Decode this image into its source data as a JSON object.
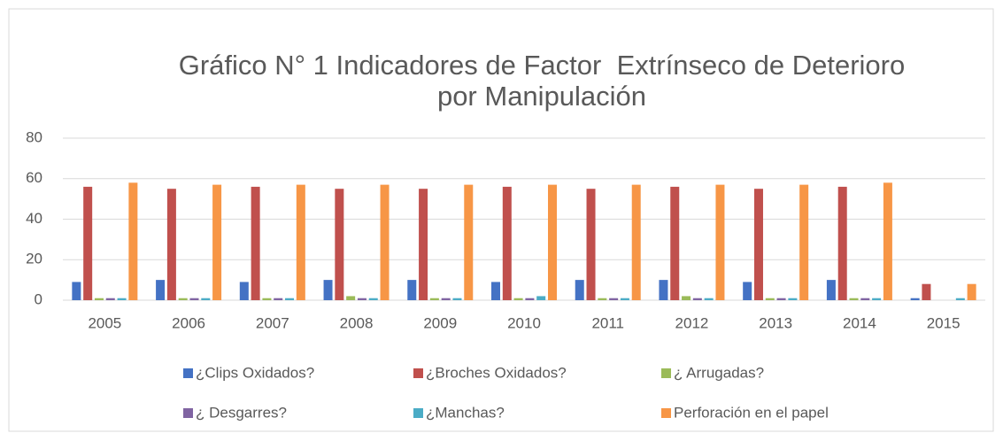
{
  "chart_data": {
    "type": "bar",
    "title": [
      "Gráfico N° 1 Indicadores de Factor  Extrínseco de Deterioro",
      "por Manipulación"
    ],
    "categories": [
      "2005",
      "2006",
      "2007",
      "2008",
      "2009",
      "2010",
      "2011",
      "2012",
      "2013",
      "2014",
      "2015"
    ],
    "series": [
      {
        "name": "¿Clips Oxidados?",
        "color": "#4472c4",
        "values": [
          9,
          10,
          9,
          10,
          10,
          9,
          10,
          10,
          9,
          10,
          1
        ]
      },
      {
        "name": "¿Broches Oxidados?",
        "color": "#c0504d",
        "values": [
          56,
          55,
          56,
          55,
          55,
          56,
          55,
          56,
          55,
          56,
          8
        ]
      },
      {
        "name": "¿ Arrugadas?",
        "color": "#9bbb59",
        "values": [
          1,
          1,
          1,
          2,
          1,
          1,
          1,
          2,
          1,
          1,
          0
        ]
      },
      {
        "name": "¿ Desgarres?",
        "color": "#8064a2",
        "values": [
          1,
          1,
          1,
          1,
          1,
          1,
          1,
          1,
          1,
          1,
          0
        ]
      },
      {
        "name": "¿Manchas?",
        "color": "#4bacc6",
        "values": [
          1,
          1,
          1,
          1,
          1,
          2,
          1,
          1,
          1,
          1,
          1
        ]
      },
      {
        "name": "Perforación en el papel",
        "color": "#f79646",
        "values": [
          58,
          57,
          57,
          57,
          57,
          57,
          57,
          57,
          57,
          58,
          8
        ]
      }
    ],
    "ylim": [
      0,
      80
    ],
    "yticks": [
      0,
      20,
      40,
      60,
      80
    ],
    "grid": true,
    "legend": "bottom"
  }
}
